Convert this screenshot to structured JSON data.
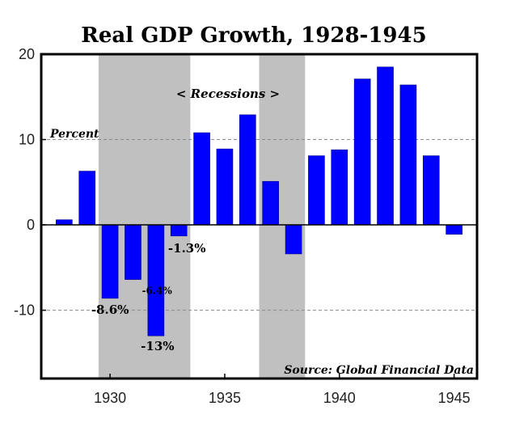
{
  "chart_data": {
    "type": "bar",
    "title": "Real GDP Growth, 1928-1945",
    "ylabel": "Percent",
    "xlabel": "",
    "ylim": [
      -18,
      20
    ],
    "xlim": [
      1927,
      1946
    ],
    "grid": "dashed horizontal at 10 and -10",
    "x": [
      1928,
      1929,
      1930,
      1931,
      1932,
      1933,
      1934,
      1935,
      1936,
      1937,
      1938,
      1939,
      1940,
      1941,
      1942,
      1943,
      1944,
      1945
    ],
    "values": [
      0.6,
      6.3,
      -8.6,
      -6.4,
      -13.0,
      -1.3,
      10.8,
      8.9,
      12.9,
      5.1,
      -3.4,
      8.1,
      8.8,
      17.1,
      18.5,
      16.4,
      8.1,
      -1.1
    ],
    "bar_color": "#0000ff",
    "yticks": [
      20,
      10,
      0,
      -10
    ],
    "ytick_labels": [
      "20",
      "10",
      "0",
      "-10"
    ],
    "xticks": [
      1930,
      1935,
      1940,
      1945
    ],
    "xtick_labels": [
      "1930",
      "1935",
      "1940",
      "1945"
    ],
    "recession_shading": [
      {
        "start": 1929.5,
        "end": 1933.5
      },
      {
        "start": 1936.5,
        "end": 1938.5
      }
    ],
    "shade_color": "#c0c0c0",
    "data_labels": [
      {
        "year": 1930,
        "text": "-8.6%"
      },
      {
        "year": 1931,
        "text": "-6.4%"
      },
      {
        "year": 1932,
        "text": "-13%"
      },
      {
        "year": 1933,
        "text": "-1.3%"
      }
    ],
    "annotations": {
      "recessions": "< Recessions >",
      "percent": "Percent",
      "source": "Source: Global Financial Data"
    }
  }
}
